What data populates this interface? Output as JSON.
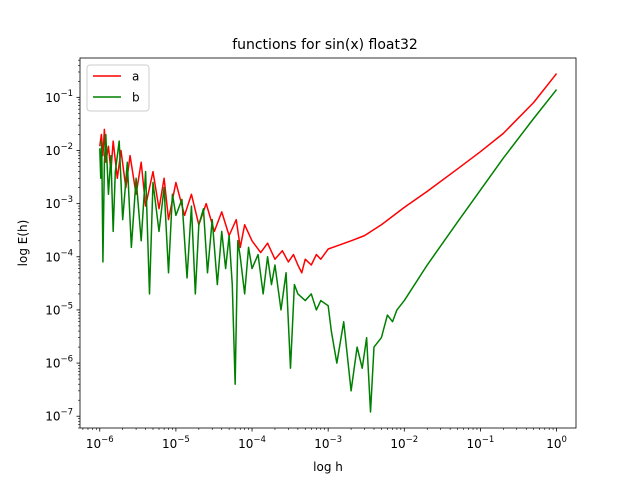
{
  "chart_data": {
    "type": "line",
    "title": "functions for sin(x) float32",
    "xlabel": "log h",
    "ylabel": "log E(h)",
    "xscale": "log",
    "yscale": "log",
    "xlim": [
      5.5e-07,
      1.8
    ],
    "ylim": [
      6e-08,
      0.55
    ],
    "xticks": [
      {
        "value": 1e-06,
        "base": "10",
        "exp": "−6"
      },
      {
        "value": 1e-05,
        "base": "10",
        "exp": "−5"
      },
      {
        "value": 0.0001,
        "base": "10",
        "exp": "−4"
      },
      {
        "value": 0.001,
        "base": "10",
        "exp": "−3"
      },
      {
        "value": 0.01,
        "base": "10",
        "exp": "−2"
      },
      {
        "value": 0.1,
        "base": "10",
        "exp": "−1"
      },
      {
        "value": 1,
        "base": "10",
        "exp": "0"
      }
    ],
    "yticks": [
      {
        "value": 1e-07,
        "base": "10",
        "exp": "−7"
      },
      {
        "value": 1e-06,
        "base": "10",
        "exp": "−6"
      },
      {
        "value": 1e-05,
        "base": "10",
        "exp": "−5"
      },
      {
        "value": 0.0001,
        "base": "10",
        "exp": "−4"
      },
      {
        "value": 0.001,
        "base": "10",
        "exp": "−3"
      },
      {
        "value": 0.01,
        "base": "10",
        "exp": "−2"
      },
      {
        "value": 0.1,
        "base": "10",
        "exp": "−1"
      }
    ],
    "grid": false,
    "legend_position": "upper-left",
    "series": [
      {
        "name": "a",
        "color": "#ff0000",
        "points": [
          [
            1e-06,
            0.012
          ],
          [
            1.05e-06,
            0.02
          ],
          [
            1.1e-06,
            0.008
          ],
          [
            1.15e-06,
            0.025
          ],
          [
            1.2e-06,
            0.006
          ],
          [
            1.3e-06,
            0.012
          ],
          [
            1.4e-06,
            0.004
          ],
          [
            1.5e-06,
            0.015
          ],
          [
            1.7e-06,
            0.003
          ],
          [
            1.9e-06,
            0.01
          ],
          [
            2.2e-06,
            0.002
          ],
          [
            2.5e-06,
            0.008
          ],
          [
            3e-06,
            0.0015
          ],
          [
            3.5e-06,
            0.006
          ],
          [
            4e-06,
            0.0009
          ],
          [
            5e-06,
            0.004
          ],
          [
            6e-06,
            0.0008
          ],
          [
            7e-06,
            0.003
          ],
          [
            8e-06,
            0.0005
          ],
          [
            1e-05,
            0.0025
          ],
          [
            1.3e-05,
            0.0006
          ],
          [
            1.6e-05,
            0.0015
          ],
          [
            2e-05,
            0.0004
          ],
          [
            2.5e-05,
            0.001
          ],
          [
            3.2e-05,
            0.0003
          ],
          [
            4e-05,
            0.0007
          ],
          [
            5e-05,
            0.00025
          ],
          [
            6.2e-05,
            0.0005
          ],
          [
            7e-05,
            0.00015
          ],
          [
            8e-05,
            0.0004
          ],
          [
            0.0001,
            0.0002
          ],
          [
            0.00013,
            0.00012
          ],
          [
            0.00016,
            0.00018
          ],
          [
            0.0002,
            9e-05
          ],
          [
            0.00025,
            0.00013
          ],
          [
            0.0003,
            8e-05
          ],
          [
            0.00035,
            0.00011
          ],
          [
            0.0004,
            7e-05
          ],
          [
            0.00045,
            5e-05
          ],
          [
            0.0005,
            9e-05
          ],
          [
            0.0006,
            7e-05
          ],
          [
            0.0007,
            0.00011
          ],
          [
            0.0008,
            9e-05
          ],
          [
            0.001,
            0.00014
          ],
          [
            0.0013,
            0.00016
          ],
          [
            0.002,
            0.0002
          ],
          [
            0.003,
            0.00025
          ],
          [
            0.005,
            0.0004
          ],
          [
            0.01,
            0.00085
          ],
          [
            0.02,
            0.0017
          ],
          [
            0.05,
            0.0045
          ],
          [
            0.1,
            0.0095
          ],
          [
            0.2,
            0.021
          ],
          [
            0.5,
            0.08
          ],
          [
            1,
            0.28
          ]
        ]
      },
      {
        "name": "b",
        "color": "#008000",
        "points": [
          [
            1e-06,
            0.011
          ],
          [
            1.03e-06,
            0.003
          ],
          [
            1.06e-06,
            0.015
          ],
          [
            1.1e-06,
            8e-05
          ],
          [
            1.15e-06,
            0.006
          ],
          [
            1.2e-06,
            0.02
          ],
          [
            1.3e-06,
            0.0015
          ],
          [
            1.4e-06,
            0.008
          ],
          [
            1.5e-06,
            0.0003
          ],
          [
            1.6e-06,
            0.004
          ],
          [
            1.8e-06,
            0.015
          ],
          [
            2e-06,
            0.0005
          ],
          [
            2.3e-06,
            0.006
          ],
          [
            2.6e-06,
            0.00015
          ],
          [
            3e-06,
            0.003
          ],
          [
            3.5e-06,
            0.0002
          ],
          [
            4e-06,
            0.004
          ],
          [
            4.5e-06,
            2e-05
          ],
          [
            5e-06,
            0.0025
          ],
          [
            6e-06,
            0.0003
          ],
          [
            7e-06,
            0.002
          ],
          [
            8e-06,
            5e-05
          ],
          [
            9e-06,
            0.0015
          ],
          [
            1e-05,
            0.0006
          ],
          [
            1.2e-05,
            0.0012
          ],
          [
            1.4e-05,
            4e-05
          ],
          [
            1.6e-05,
            0.0009
          ],
          [
            1.8e-05,
            2e-05
          ],
          [
            2e-05,
            0.0004
          ],
          [
            2.3e-05,
            0.0008
          ],
          [
            2.6e-05,
            5e-05
          ],
          [
            3e-05,
            0.0005
          ],
          [
            3.5e-05,
            3e-05
          ],
          [
            4e-05,
            0.0003
          ],
          [
            4.5e-05,
            6e-05
          ],
          [
            5e-05,
            0.00025
          ],
          [
            5.5e-05,
            3e-05
          ],
          [
            6e-05,
            4e-07
          ],
          [
            6.5e-05,
            0.0002
          ],
          [
            7e-05,
            0.0001
          ],
          [
            8e-05,
            2e-05
          ],
          [
            9e-05,
            0.00015
          ],
          [
            0.0001,
            6e-05
          ],
          [
            0.00012,
            0.00011
          ],
          [
            0.00014,
            2e-05
          ],
          [
            0.00016,
            0.0001
          ],
          [
            0.00018,
            3e-05
          ],
          [
            0.0002,
            7e-05
          ],
          [
            0.00024,
            1e-05
          ],
          [
            0.00028,
            5e-05
          ],
          [
            0.00032,
            8e-07
          ],
          [
            0.00036,
            3e-05
          ],
          [
            0.0004,
            2e-05
          ],
          [
            0.0005,
            1.5e-05
          ],
          [
            0.0006,
            2e-05
          ],
          [
            0.0007,
            1e-05
          ],
          [
            0.0008,
            1.5e-05
          ],
          [
            0.001,
            1.2e-05
          ],
          [
            0.0011,
            4e-06
          ],
          [
            0.0013,
            1e-06
          ],
          [
            0.0016,
            6e-06
          ],
          [
            0.002,
            3e-07
          ],
          [
            0.0024,
            2e-06
          ],
          [
            0.0028,
            8e-07
          ],
          [
            0.0032,
            3e-06
          ],
          [
            0.0036,
            1.2e-07
          ],
          [
            0.004,
            2e-06
          ],
          [
            0.005,
            3e-06
          ],
          [
            0.006,
            8e-06
          ],
          [
            0.007,
            6e-06
          ],
          [
            0.008,
            1e-05
          ],
          [
            0.01,
            1.5e-05
          ],
          [
            0.02,
            7e-05
          ],
          [
            0.05,
            0.00045
          ],
          [
            0.1,
            0.0018
          ],
          [
            0.2,
            0.0072
          ],
          [
            0.5,
            0.04
          ],
          [
            1,
            0.14
          ]
        ]
      }
    ]
  }
}
